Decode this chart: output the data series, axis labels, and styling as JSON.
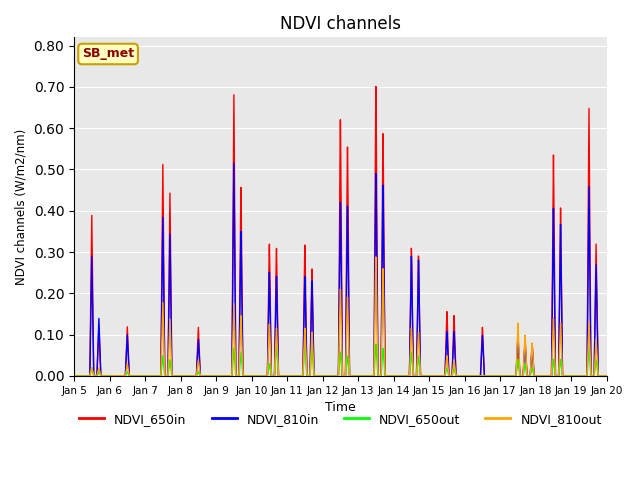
{
  "title": "NDVI channels",
  "xlabel": "Time",
  "ylabel": "NDVI channels (W/m2/nm)",
  "ylim": [
    0.0,
    0.82
  ],
  "yticks": [
    0.0,
    0.1,
    0.2,
    0.3,
    0.4,
    0.5,
    0.6,
    0.7,
    0.8
  ],
  "bg_color": "#e8e8e8",
  "label_box_text": "SB_met",
  "label_box_color": "#c8a000",
  "label_box_bg": "#ffffc0",
  "series_colors": {
    "NDVI_650in": "red",
    "NDVI_810in": "blue",
    "NDVI_650out": "lime",
    "NDVI_810out": "orange"
  },
  "series_lw": 1.0,
  "spike_peaks_650in": [
    0.39,
    0.12,
    0.12,
    0.52,
    0.45,
    0.12,
    0.7,
    0.47,
    0.33,
    0.32,
    0.33,
    0.27,
    0.65,
    0.58,
    0.73,
    0.61,
    0.32,
    0.3,
    0.16,
    0.15,
    0.12,
    0.09,
    0.09,
    0.08,
    0.54,
    0.41,
    0.65,
    0.32
  ],
  "spike_peaks_810in": [
    0.29,
    0.14,
    0.1,
    0.39,
    0.35,
    0.09,
    0.53,
    0.36,
    0.26,
    0.25,
    0.25,
    0.24,
    0.44,
    0.43,
    0.51,
    0.48,
    0.3,
    0.29,
    0.11,
    0.11,
    0.1,
    0.1,
    0.08,
    0.07,
    0.41,
    0.37,
    0.46,
    0.27
  ],
  "spike_peaks_650out": [
    0.02,
    0.01,
    0.01,
    0.05,
    0.04,
    0.01,
    0.07,
    0.06,
    0.03,
    0.08,
    0.08,
    0.07,
    0.06,
    0.05,
    0.08,
    0.07,
    0.06,
    0.05,
    0.02,
    0.02,
    0.0,
    0.04,
    0.03,
    0.02,
    0.04,
    0.04,
    0.07,
    0.04
  ],
  "spike_peaks_810out": [
    0.02,
    0.02,
    0.03,
    0.18,
    0.14,
    0.04,
    0.18,
    0.15,
    0.13,
    0.12,
    0.12,
    0.11,
    0.22,
    0.2,
    0.3,
    0.27,
    0.12,
    0.11,
    0.05,
    0.04,
    0.0,
    0.13,
    0.1,
    0.08,
    0.14,
    0.13,
    0.13,
    0.09
  ],
  "spike_times": [
    5.5,
    5.7,
    6.5,
    7.5,
    7.7,
    8.5,
    9.5,
    9.7,
    10.5,
    10.7,
    11.5,
    11.7,
    12.5,
    12.7,
    13.5,
    13.7,
    14.5,
    14.7,
    15.5,
    15.7,
    16.5,
    17.5,
    17.7,
    17.9,
    18.5,
    18.7,
    19.5,
    19.7
  ],
  "xtick_positions": [
    5,
    6,
    7,
    8,
    9,
    10,
    11,
    12,
    13,
    14,
    15,
    16,
    17,
    18,
    19,
    20
  ],
  "xtick_labels": [
    "Jan 5",
    "Jan 6",
    "Jan 7",
    "Jan 8",
    "Jan 9",
    "Jan 10",
    "Jan 11",
    "Jan 12",
    "Jan 13",
    "Jan 14",
    "Jan 15",
    "Jan 16",
    "Jan 17",
    "Jan 18",
    "Jan 19",
    "Jan 20"
  ],
  "legend_entries": [
    "NDVI_650in",
    "NDVI_810in",
    "NDVI_650out",
    "NDVI_810out"
  ],
  "legend_colors": [
    "red",
    "blue",
    "lime",
    "orange"
  ]
}
